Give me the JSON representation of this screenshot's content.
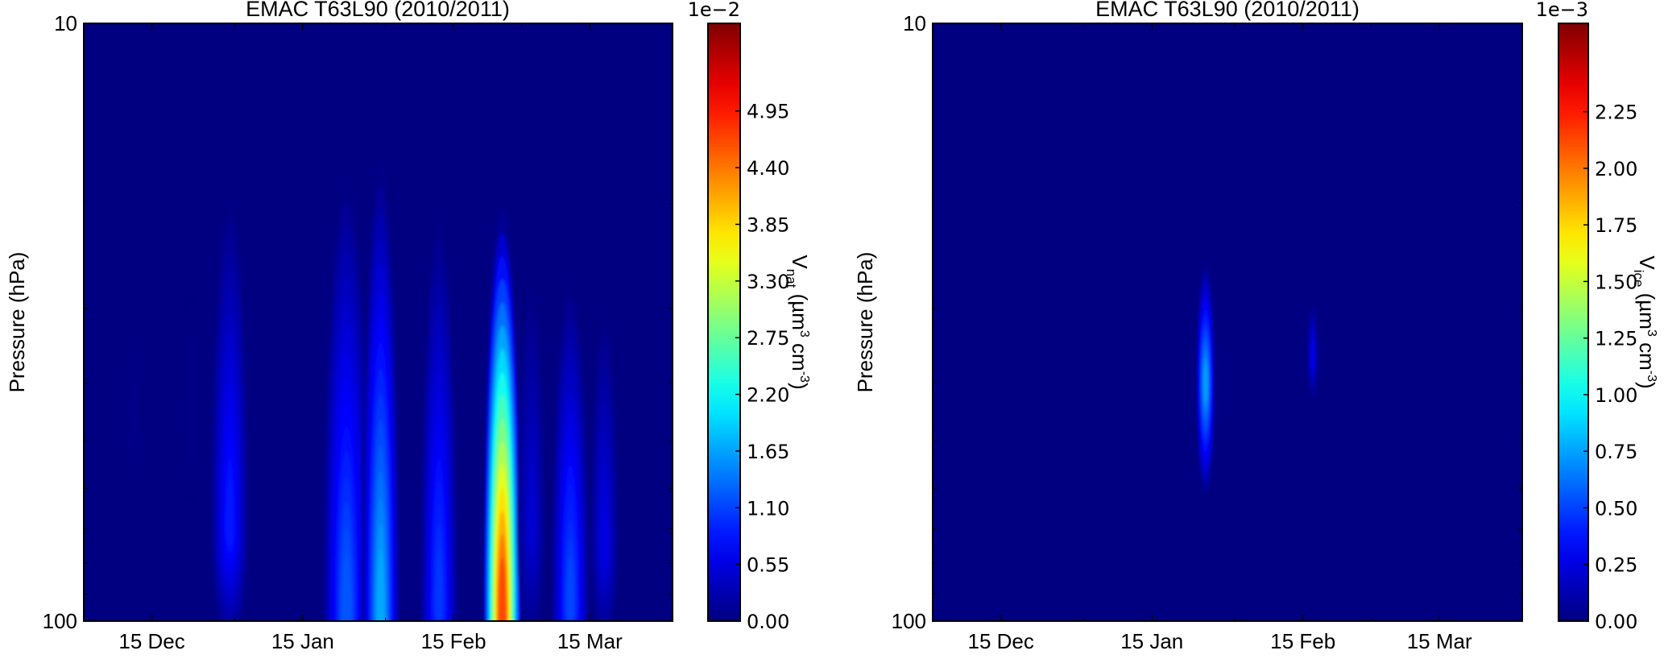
{
  "chart_data": [
    {
      "type": "heatmap",
      "subtype": "filled-contour",
      "title": "EMAC T63L90 (2010/2011)",
      "xlabel": "",
      "ylabel": "Pressure (hPa)",
      "x_range": [
        "2010-12-01",
        "2011-04-01"
      ],
      "x_ticks": [
        {
          "date": "2010-12-15",
          "label": "15 Dec"
        },
        {
          "date": "2011-01-15",
          "label": "15 Jan"
        },
        {
          "date": "2011-02-15",
          "label": "15 Feb"
        },
        {
          "date": "2011-03-15",
          "label": "15 Mar"
        }
      ],
      "y_scale": "log",
      "y_range": [
        100,
        10
      ],
      "y_inverted": true,
      "y_ticks": [
        {
          "value": 10,
          "label": "10"
        },
        {
          "value": 100,
          "label": "100"
        }
      ],
      "colormap": "jet",
      "background_color": "#000080",
      "colorbar": {
        "offset_label": "1e−2",
        "vmin": 0,
        "vmax": 0.058,
        "ticks": [
          0,
          0.0055,
          0.011,
          0.0165,
          0.022,
          0.0275,
          0.033,
          0.0385,
          0.044,
          0.0495
        ],
        "tick_labels": [
          "0.00",
          "0.55",
          "1.10",
          "1.65",
          "2.20",
          "2.75",
          "3.30",
          "3.85",
          "4.40",
          "4.95"
        ],
        "label": {
          "symbol": "V",
          "subscript": "nat",
          "open": " (µm",
          "exp1": "3",
          "mid": " cm",
          "exp2": "-3",
          "close": ")"
        }
      },
      "features": [
        {
          "date": "2010-12-11",
          "p_top": 30,
          "p_bottom": 62,
          "p_peak": 45,
          "half_width_days": 2,
          "peak_value": 0.0005
        },
        {
          "date": "2010-12-23",
          "p_top": 27,
          "p_bottom": 66,
          "p_peak": 45,
          "half_width_days": 3,
          "peak_value": 0.0003
        },
        {
          "date": "2010-12-31",
          "p_top": 19.5,
          "p_bottom": 110,
          "p_peak": 70,
          "half_width_days": 4,
          "peak_value": 0.009
        },
        {
          "date": "2011-01-24",
          "p_top": 18,
          "p_bottom": 130,
          "p_peak": 100,
          "half_width_days": 5,
          "peak_value": 0.013
        },
        {
          "date": "2011-01-31",
          "p_top": 17,
          "p_bottom": 130,
          "p_peak": 100,
          "half_width_days": 4,
          "peak_value": 0.018
        },
        {
          "date": "2011-02-12",
          "p_top": 21,
          "p_bottom": 130,
          "p_peak": 95,
          "half_width_days": 4,
          "peak_value": 0.011
        },
        {
          "date": "2011-02-25",
          "p_top": 20.5,
          "p_bottom": 130,
          "p_peak": 100,
          "half_width_days": 4,
          "peak_value": 0.05
        },
        {
          "date": "2011-03-03",
          "p_top": 27,
          "p_bottom": 110,
          "p_peak": 70,
          "half_width_days": 3,
          "peak_value": 0.005
        },
        {
          "date": "2011-03-11",
          "p_top": 27,
          "p_bottom": 130,
          "p_peak": 95,
          "half_width_days": 4,
          "peak_value": 0.012
        },
        {
          "date": "2011-03-18",
          "p_top": 30,
          "p_bottom": 110,
          "p_peak": 75,
          "half_width_days": 3,
          "peak_value": 0.006
        }
      ]
    },
    {
      "type": "heatmap",
      "subtype": "filled-contour",
      "title": "EMAC T63L90 (2010/2011)",
      "xlabel": "",
      "ylabel": "Pressure (hPa)",
      "x_range": [
        "2010-12-01",
        "2011-04-01"
      ],
      "x_ticks": [
        {
          "date": "2010-12-15",
          "label": "15 Dec"
        },
        {
          "date": "2011-01-15",
          "label": "15 Jan"
        },
        {
          "date": "2011-02-15",
          "label": "15 Feb"
        },
        {
          "date": "2011-03-15",
          "label": "15 Mar"
        }
      ],
      "y_scale": "log",
      "y_range": [
        100,
        10
      ],
      "y_inverted": true,
      "y_ticks": [
        {
          "value": 10,
          "label": "10"
        },
        {
          "value": 100,
          "label": "100"
        }
      ],
      "colormap": "jet",
      "background_color": "#000080",
      "colorbar": {
        "offset_label": "1e−3",
        "vmin": 0,
        "vmax": 0.00264,
        "ticks": [
          0,
          0.00025,
          0.0005,
          0.00075,
          0.001,
          0.00125,
          0.0015,
          0.00175,
          0.002,
          0.00225
        ],
        "tick_labels": [
          "0.00",
          "0.25",
          "0.50",
          "0.75",
          "1.00",
          "1.25",
          "1.50",
          "1.75",
          "2.00",
          "2.25"
        ],
        "label": {
          "symbol": "V",
          "subscript": "ice",
          "open": " (µm",
          "exp1": "3",
          "mid": " cm",
          "exp2": "-3",
          "close": ")"
        }
      },
      "features": [
        {
          "date": "2011-01-26",
          "p_top": 25,
          "p_bottom": 62,
          "p_peak": 40,
          "half_width_days": 2,
          "peak_value": 0.0008
        },
        {
          "date": "2011-02-17",
          "p_top": 29,
          "p_bottom": 43,
          "p_peak": 36,
          "half_width_days": 1.2,
          "peak_value": 0.0003
        }
      ]
    }
  ]
}
